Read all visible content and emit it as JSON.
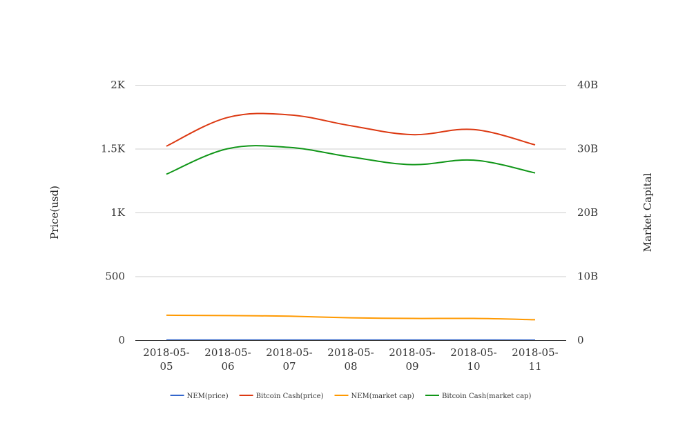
{
  "chart_data": {
    "type": "line",
    "categories": [
      "2018-05-05",
      "2018-05-06",
      "2018-05-07",
      "2018-05-08",
      "2018-05-09",
      "2018-05-10",
      "2018-05-11"
    ],
    "category_lines": [
      [
        "2018-05-",
        "05"
      ],
      [
        "2018-05-",
        "06"
      ],
      [
        "2018-05-",
        "07"
      ],
      [
        "2018-05-",
        "08"
      ],
      [
        "2018-05-",
        "09"
      ],
      [
        "2018-05-",
        "10"
      ],
      [
        "2018-05-",
        "11"
      ]
    ],
    "left_axis": {
      "label": "Price(usd)",
      "ylim": [
        0,
        2000
      ],
      "ticks": [
        0,
        500,
        1000,
        1500,
        2000
      ],
      "tick_labels": [
        "0",
        "500",
        "1K",
        "1.5K",
        "2K"
      ]
    },
    "right_axis": {
      "label": "Market Capital",
      "ylim": [
        0,
        40000000000
      ],
      "ticks": [
        0,
        10000000000,
        20000000000,
        30000000000,
        40000000000
      ],
      "tick_labels": [
        "0",
        "10B",
        "20B",
        "30B",
        "40B"
      ]
    },
    "grid": true,
    "legend": "bottom",
    "series": [
      {
        "name": "NEM(price)",
        "axis": "left",
        "color": "#3366cc",
        "values": [
          0.42,
          0.41,
          0.4,
          0.37,
          0.36,
          0.36,
          0.34
        ]
      },
      {
        "name": "Bitcoin Cash(price)",
        "axis": "left",
        "color": "#dc3912",
        "values": [
          1520,
          1745,
          1765,
          1680,
          1610,
          1650,
          1530
        ]
      },
      {
        "name": "NEM(market cap)",
        "axis": "right",
        "color": "#ff9900",
        "values": [
          3900000000,
          3850000000,
          3750000000,
          3500000000,
          3400000000,
          3400000000,
          3200000000
        ]
      },
      {
        "name": "Bitcoin Cash(market cap)",
        "axis": "right",
        "color": "#109618",
        "values": [
          26000000000,
          30000000000,
          30200000000,
          28700000000,
          27500000000,
          28200000000,
          26200000000
        ]
      }
    ]
  }
}
